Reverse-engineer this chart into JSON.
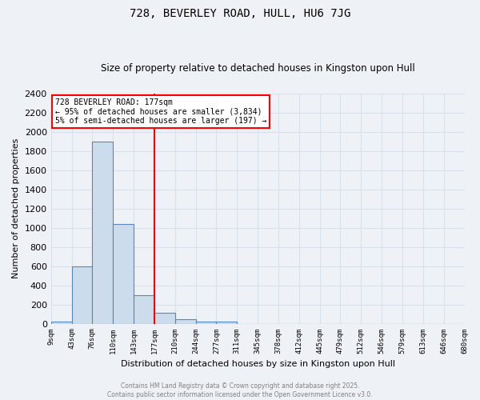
{
  "title": "728, BEVERLEY ROAD, HULL, HU6 7JG",
  "subtitle": "Size of property relative to detached houses in Kingston upon Hull",
  "xlabel": "Distribution of detached houses by size in Kingston upon Hull",
  "ylabel": "Number of detached properties",
  "bin_labels": [
    "9sqm",
    "43sqm",
    "76sqm",
    "110sqm",
    "143sqm",
    "177sqm",
    "210sqm",
    "244sqm",
    "277sqm",
    "311sqm",
    "345sqm",
    "378sqm",
    "412sqm",
    "445sqm",
    "479sqm",
    "512sqm",
    "546sqm",
    "579sqm",
    "613sqm",
    "646sqm",
    "680sqm"
  ],
  "bar_heights": [
    20,
    600,
    1900,
    1040,
    295,
    110,
    45,
    25,
    20,
    0,
    0,
    0,
    0,
    0,
    0,
    0,
    0,
    0,
    0,
    0
  ],
  "bar_color": "#ccdcec",
  "bar_edge_color": "#5588bb",
  "red_line_index": 5,
  "annotation_title": "728 BEVERLEY ROAD: 177sqm",
  "annotation_line1": "← 95% of detached houses are smaller (3,834)",
  "annotation_line2": "5% of semi-detached houses are larger (197) →",
  "ylim": [
    0,
    2400
  ],
  "yticks": [
    0,
    200,
    400,
    600,
    800,
    1000,
    1200,
    1400,
    1600,
    1800,
    2000,
    2200,
    2400
  ],
  "background_color": "#eef2f7",
  "grid_color": "#d8e0ea",
  "footer_line1": "Contains HM Land Registry data © Crown copyright and database right 2025.",
  "footer_line2": "Contains public sector information licensed under the Open Government Licence v3.0."
}
